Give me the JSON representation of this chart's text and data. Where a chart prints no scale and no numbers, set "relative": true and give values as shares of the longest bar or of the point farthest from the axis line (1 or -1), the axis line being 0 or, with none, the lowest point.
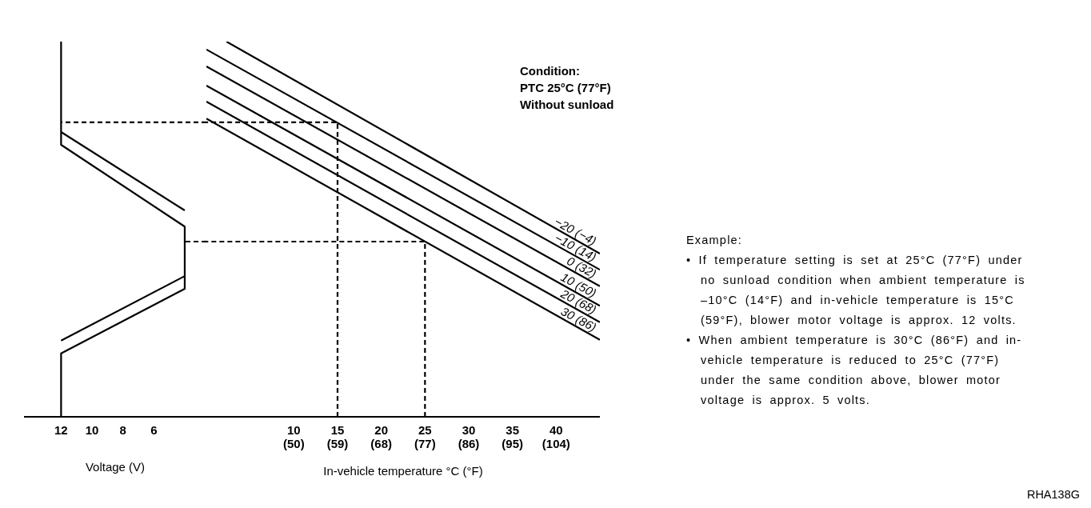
{
  "chart_data": [
    {
      "type": "line",
      "relative": true,
      "xlabel": "Voltage (V)",
      "xlim": [
        14.4,
        2.6
      ],
      "xticks": [
        12,
        10,
        8,
        6
      ],
      "marker": "none",
      "legend": false,
      "grid": false,
      "series": [
        {
          "color": "#000000",
          "x": [
            12,
            12,
            4,
            4,
            12,
            12
          ],
          "values": [
            1.0,
            0.725,
            0.507,
            0.341,
            0.169,
            0
          ]
        },
        {
          "color": "#000000",
          "x": [
            12,
            4
          ],
          "values": [
            0.759,
            0.55
          ]
        },
        {
          "color": "#000000",
          "x": [
            4,
            12
          ],
          "values": [
            0.375,
            0.203
          ]
        },
        {
          "color": "#000000",
          "line_style": "dashed",
          "x": [
            2.6,
            12
          ],
          "values": [
            0.785,
            0.785
          ]
        },
        {
          "color": "#000000",
          "line_style": "dashed",
          "x": [
            2.6,
            4
          ],
          "values": [
            0.467,
            0.467
          ]
        }
      ]
    },
    {
      "type": "line",
      "relative": true,
      "xlabel": "In-vehicle temperature °C (°F)",
      "xlim": [
        0,
        45
      ],
      "marker": "none",
      "legend": false,
      "grid": false,
      "xticks": [
        10,
        15,
        20,
        25,
        30,
        35,
        40
      ],
      "x2lim": [
        32,
        113
      ],
      "x2ticks": [
        {
          "value": 50,
          "label": "(50)"
        },
        {
          "value": 59,
          "label": "(59)"
        },
        {
          "value": 68,
          "label": "(68)"
        },
        {
          "value": 77,
          "label": "(77)"
        },
        {
          "value": 86,
          "label": "(86)"
        },
        {
          "value": 95,
          "label": "(95)"
        },
        {
          "value": 104,
          "label": "(104)"
        }
      ],
      "series": [
        {
          "name": "−20 (−4)",
          "color": "#000000",
          "x": [
            2.3,
            45
          ],
          "values": [
            1.0,
            0.435
          ]
        },
        {
          "name": "−10 (14)",
          "color": "#000000",
          "x": [
            0,
            45
          ],
          "values": [
            0.979,
            0.392
          ]
        },
        {
          "name": "0 (32)",
          "color": "#000000",
          "x": [
            0,
            45
          ],
          "values": [
            0.934,
            0.348
          ]
        },
        {
          "name": "10 (50)",
          "color": "#000000",
          "x": [
            0,
            45
          ],
          "values": [
            0.883,
            0.296
          ]
        },
        {
          "name": "20 (68)",
          "color": "#000000",
          "x": [
            0,
            45
          ],
          "values": [
            0.84,
            0.252
          ]
        },
        {
          "name": "30 (86)",
          "color": "#000000",
          "x": [
            0,
            45
          ],
          "values": [
            0.795,
            0.205
          ]
        },
        {
          "color": "#000000",
          "line_style": "dashed",
          "x": [
            15,
            15,
            0
          ],
          "values": [
            0,
            0.785,
            0.785
          ]
        },
        {
          "color": "#000000",
          "line_style": "dashed",
          "x": [
            25,
            25,
            0
          ],
          "values": [
            0,
            0.467,
            0.467
          ]
        }
      ],
      "annotations": [
        "Condition:\nPTC 25°C (77°F)\nWithout sunload",
        "Example:",
        "• If temperature setting is set at 25°C (77°F) under no sunload condition when ambient temperature is –10°C (14°F) and in-vehicle temperature is 15°C (59°F), blower motor voltage is approx. 12 volts.",
        "• When ambient temperature is 30°C (86°F) and in-vehicle temperature is reduced to 25°C (77°F) under the same condition above, blower motor voltage is approx. 5 volts.",
        "RHA138G"
      ]
    }
  ]
}
